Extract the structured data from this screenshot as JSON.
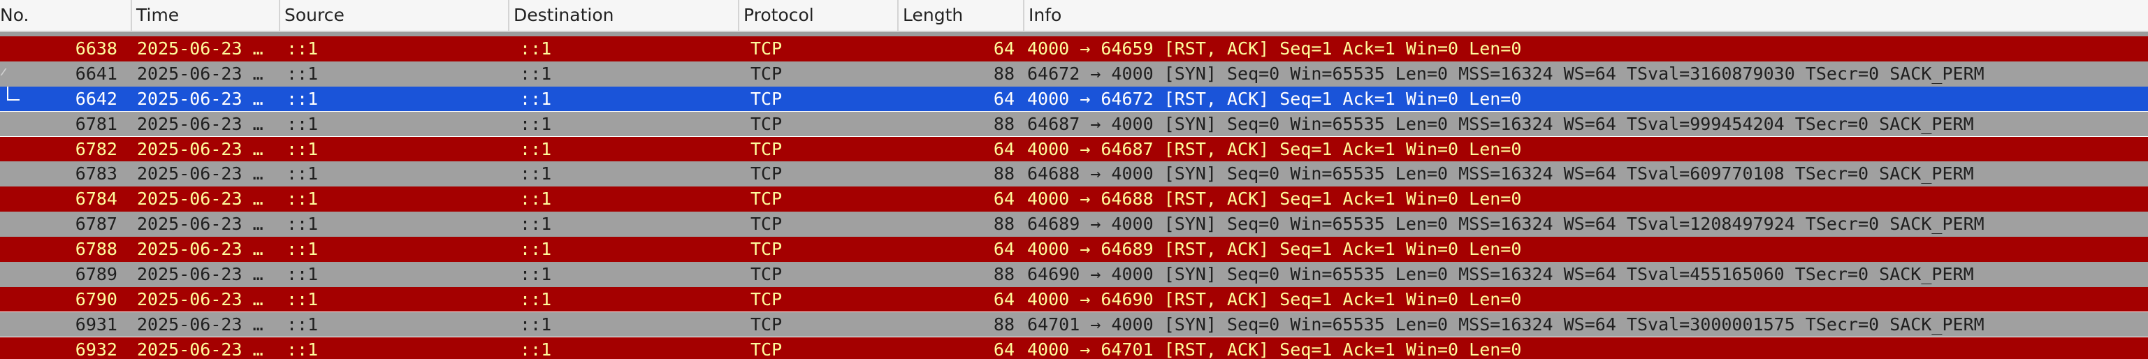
{
  "columns": {
    "no": "No.",
    "time": "Time",
    "source": "Source",
    "destination": "Destination",
    "protocol": "Protocol",
    "length": "Length",
    "info": "Info"
  },
  "colors": {
    "error_bg": "#a40000",
    "error_fg": "#fffc9c",
    "normal_bg": "#a0a0a0",
    "selected_bg": "#1a54d9"
  },
  "packets": [
    {
      "no": "6638",
      "time": "2025-06-23 …",
      "src": "::1",
      "dst": "::1",
      "proto": "TCP",
      "len": "64",
      "info": "4000 → 64659 [RST, ACK] Seq=1 Ack=1 Win=0 Len=0",
      "style": "error"
    },
    {
      "no": "6641",
      "time": "2025-06-23 …",
      "src": "::1",
      "dst": "::1",
      "proto": "TCP",
      "len": "88",
      "info": "64672 → 4000 [SYN] Seq=0 Win=65535 Len=0 MSS=16324 WS=64 TSval=3160879030 TSecr=0 SACK_PERM",
      "style": "normal"
    },
    {
      "no": "6642",
      "time": "2025-06-23 …",
      "src": "::1",
      "dst": "::1",
      "proto": "TCP",
      "len": "64",
      "info": "4000 → 64672 [RST, ACK] Seq=1 Ack=1 Win=0 Len=0",
      "style": "selected"
    },
    {
      "no": "6781",
      "time": "2025-06-23 …",
      "src": "::1",
      "dst": "::1",
      "proto": "TCP",
      "len": "88",
      "info": "64687 → 4000 [SYN] Seq=0 Win=65535 Len=0 MSS=16324 WS=64 TSval=999454204 TSecr=0 SACK_PERM",
      "style": "normal"
    },
    {
      "no": "6782",
      "time": "2025-06-23 …",
      "src": "::1",
      "dst": "::1",
      "proto": "TCP",
      "len": "64",
      "info": "4000 → 64687 [RST, ACK] Seq=1 Ack=1 Win=0 Len=0",
      "style": "error"
    },
    {
      "no": "6783",
      "time": "2025-06-23 …",
      "src": "::1",
      "dst": "::1",
      "proto": "TCP",
      "len": "88",
      "info": "64688 → 4000 [SYN] Seq=0 Win=65535 Len=0 MSS=16324 WS=64 TSval=609770108 TSecr=0 SACK_PERM",
      "style": "normal"
    },
    {
      "no": "6784",
      "time": "2025-06-23 …",
      "src": "::1",
      "dst": "::1",
      "proto": "TCP",
      "len": "64",
      "info": "4000 → 64688 [RST, ACK] Seq=1 Ack=1 Win=0 Len=0",
      "style": "error"
    },
    {
      "no": "6787",
      "time": "2025-06-23 …",
      "src": "::1",
      "dst": "::1",
      "proto": "TCP",
      "len": "88",
      "info": "64689 → 4000 [SYN] Seq=0 Win=65535 Len=0 MSS=16324 WS=64 TSval=1208497924 TSecr=0 SACK_PERM",
      "style": "normal"
    },
    {
      "no": "6788",
      "time": "2025-06-23 …",
      "src": "::1",
      "dst": "::1",
      "proto": "TCP",
      "len": "64",
      "info": "4000 → 64689 [RST, ACK] Seq=1 Ack=1 Win=0 Len=0",
      "style": "error"
    },
    {
      "no": "6789",
      "time": "2025-06-23 …",
      "src": "::1",
      "dst": "::1",
      "proto": "TCP",
      "len": "88",
      "info": "64690 → 4000 [SYN] Seq=0 Win=65535 Len=0 MSS=16324 WS=64 TSval=455165060 TSecr=0 SACK_PERM",
      "style": "normal"
    },
    {
      "no": "6790",
      "time": "2025-06-23 …",
      "src": "::1",
      "dst": "::1",
      "proto": "TCP",
      "len": "64",
      "info": "4000 → 64690 [RST, ACK] Seq=1 Ack=1 Win=0 Len=0",
      "style": "error"
    },
    {
      "no": "6931",
      "time": "2025-06-23 …",
      "src": "::1",
      "dst": "::1",
      "proto": "TCP",
      "len": "88",
      "info": "64701 → 4000 [SYN] Seq=0 Win=65535 Len=0 MSS=16324 WS=64 TSval=3000001575 TSecr=0 SACK_PERM",
      "style": "normal"
    },
    {
      "no": "6932",
      "time": "2025-06-23 …",
      "src": "::1",
      "dst": "::1",
      "proto": "TCP",
      "len": "64",
      "info": "4000 → 64701 [RST, ACK] Seq=1 Ack=1 Win=0 Len=0",
      "style": "error"
    }
  ]
}
